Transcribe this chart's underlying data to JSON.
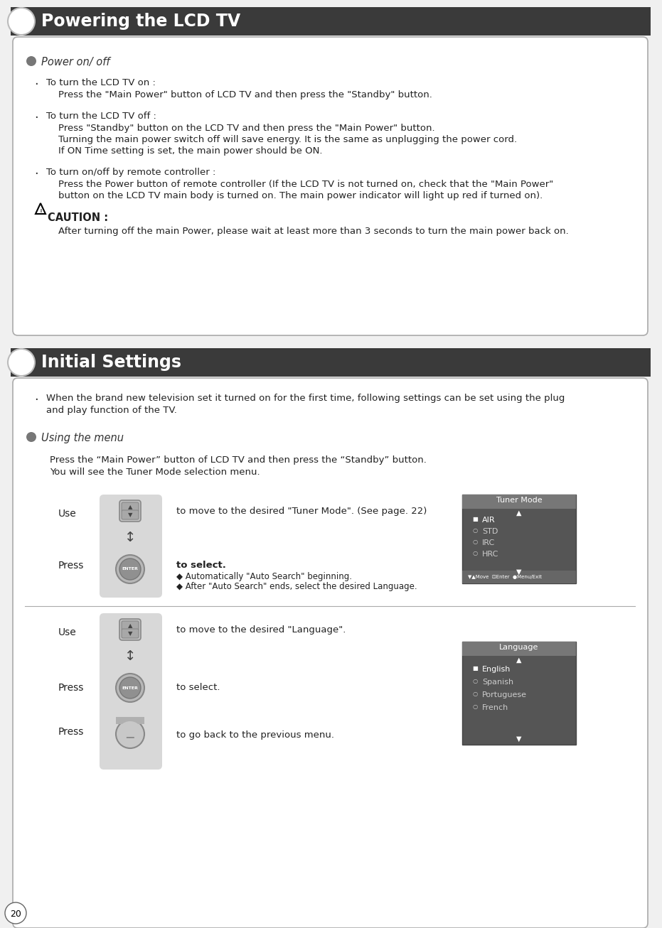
{
  "page_bg": "#f0f0f0",
  "page_num": "20",
  "section1_title": "Powering the LCD TV",
  "section2_title": "Initial Settings",
  "header_bg": "#3a3a3a",
  "header_text_color": "#ffffff",
  "body_bg": "#ffffff",
  "border_color": "#aaaaaa",
  "bullet_color": "#555555",
  "text_color": "#222222",
  "s1_bullet": "Power on/ off",
  "s1_items": [
    {
      "header": "To turn the LCD TV on :",
      "body": "Press the \"Main Power\" button of LCD TV and then press the \"Standby\" button."
    },
    {
      "header": "To turn the LCD TV off :",
      "body": "Press \"Standby\" button on the LCD TV and then press the \"Main Power\" button.\nTurning the main power switch off will save energy. It is the same as unplugging the power cord.\nIf ON Time setting is set, the main power should be ON."
    },
    {
      "header": "To turn on/off by remote controller :",
      "body": "Press the Power button of remote controller (If the LCD TV is not turned on, check that the \"Main Power\"\nbutton on the LCD TV main body is turned on. The main power indicator will light up red if turned on)."
    }
  ],
  "caution_text": "After turning off the main Power, please wait at least more than 3 seconds to turn the main power back on.",
  "s2_intro": "When the brand new television set it turned on for the first time, following settings can be set using the plug\nand play function of the TV.",
  "s2_bullet": "Using the menu",
  "s2_press_intro": "Press the “Main Power” button of LCD TV and then press the “Standby” button.\nYou will see the Tuner Mode selection menu.",
  "row1_text1": "to move to the desired \"Tuner Mode\". (See page. 22)",
  "row1_text2_line1": "to select.",
  "row1_text2_line2": "◆ Automatically \"Auto Search\" beginning.",
  "row1_text2_line3": "◆ After \"Auto Search\" ends, select the desired Language.",
  "row2_text1": "to move to the desired \"Language\".",
  "row2_text2": "to select.",
  "row2_text3": "to go back to the previous menu.",
  "screen1_title": "Tuner Mode",
  "screen1_items": [
    "AIR",
    "STD",
    "IRC",
    "HRC"
  ],
  "screen2_title": "Language",
  "screen2_items": [
    "English",
    "Spanish",
    "Portuguese",
    "French"
  ],
  "icon_bg": "#dddddd",
  "screen_bg": "#555555",
  "screen_header_bg": "#777777",
  "screen_bar_bg": "#666666"
}
